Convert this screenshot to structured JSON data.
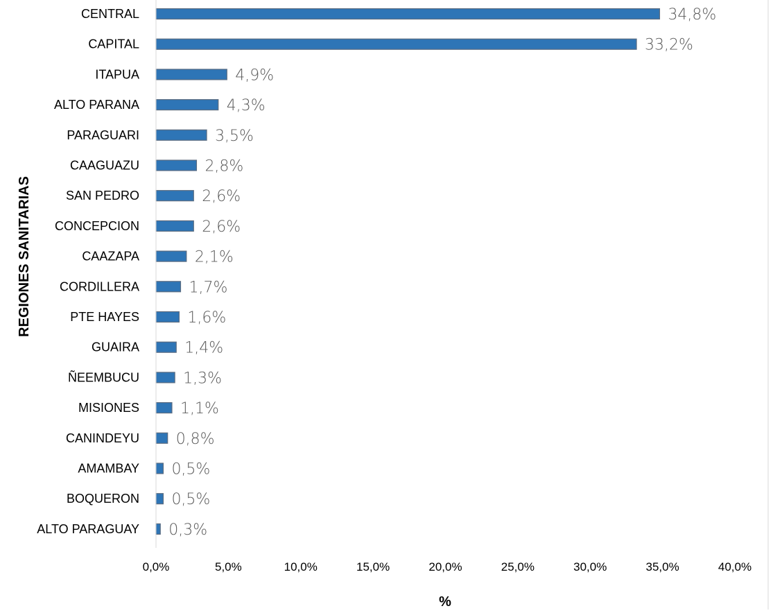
{
  "chart_data": {
    "type": "bar",
    "orientation": "horizontal",
    "title": "",
    "xlabel": "%",
    "ylabel": "REGIONES SANITARIAS",
    "xlim": [
      0,
      40
    ],
    "x_ticks": [
      "0,0%",
      "5,0%",
      "10,0%",
      "15,0%",
      "20,0%",
      "25,0%",
      "30,0%",
      "35,0%",
      "40,0%"
    ],
    "grid": false,
    "bar_color": "#2E75B6",
    "bar_edge_color": "#5A6B80",
    "categories": [
      "CENTRAL",
      "CAPITAL",
      "ITAPUA",
      "ALTO PARANA",
      "PARAGUARI",
      "CAAGUAZU",
      "SAN PEDRO",
      "CONCEPCION",
      "CAAZAPA",
      "CORDILLERA",
      "PTE HAYES",
      "GUAIRA",
      "ÑEEMBUCU",
      "MISIONES",
      "CANINDEYU",
      "AMAMBAY",
      "BOQUERON",
      "ALTO PARAGUAY"
    ],
    "values": [
      34.8,
      33.2,
      4.9,
      4.3,
      3.5,
      2.8,
      2.6,
      2.6,
      2.1,
      1.7,
      1.6,
      1.4,
      1.3,
      1.1,
      0.8,
      0.5,
      0.5,
      0.3
    ],
    "value_labels": [
      "34,8%",
      "33,2%",
      "4,9%",
      "4,3%",
      "3,5%",
      "2,8%",
      "2,6%",
      "2,6%",
      "2,1%",
      "1,7%",
      "1,6%",
      "1,4%",
      "1,3%",
      "1,1%",
      "0,8%",
      "0,5%",
      "0,5%",
      "0,3%"
    ]
  }
}
